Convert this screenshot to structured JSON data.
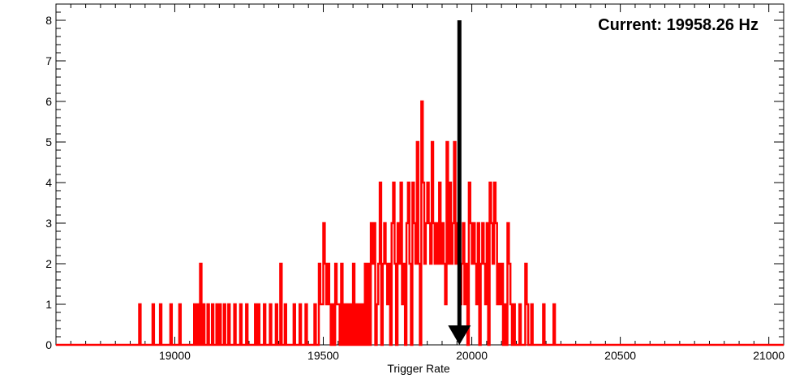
{
  "chart_data": {
    "type": "histogram-step",
    "xlabel": "Trigger Rate",
    "ylabel": "",
    "xlim": [
      18600,
      21050
    ],
    "ylim": [
      0,
      8.4
    ],
    "x_ticks": [
      19000,
      19500,
      20000,
      20500,
      21000
    ],
    "y_ticks": [
      0,
      1,
      2,
      3,
      4,
      5,
      6,
      7,
      8
    ],
    "bin_width": 5,
    "series": [
      {
        "color": "#ff0000",
        "bins": [
          [
            18880,
            1
          ],
          [
            18925,
            1
          ],
          [
            18950,
            1
          ],
          [
            18985,
            1
          ],
          [
            19015,
            1
          ],
          [
            19065,
            1
          ],
          [
            19075,
            1
          ],
          [
            19085,
            2
          ],
          [
            19095,
            1
          ],
          [
            19110,
            1
          ],
          [
            19125,
            1
          ],
          [
            19140,
            1
          ],
          [
            19150,
            1
          ],
          [
            19165,
            1
          ],
          [
            19180,
            1
          ],
          [
            19200,
            1
          ],
          [
            19220,
            1
          ],
          [
            19240,
            1
          ],
          [
            19270,
            1
          ],
          [
            19280,
            1
          ],
          [
            19300,
            1
          ],
          [
            19320,
            1
          ],
          [
            19340,
            1
          ],
          [
            19355,
            2
          ],
          [
            19370,
            1
          ],
          [
            19400,
            1
          ],
          [
            19420,
            1
          ],
          [
            19440,
            1
          ],
          [
            19470,
            1
          ],
          [
            19485,
            2
          ],
          [
            19490,
            1
          ],
          [
            19495,
            1
          ],
          [
            19500,
            3
          ],
          [
            19505,
            2
          ],
          [
            19510,
            1
          ],
          [
            19515,
            2
          ],
          [
            19520,
            1
          ],
          [
            19530,
            1
          ],
          [
            19540,
            2
          ],
          [
            19545,
            1
          ],
          [
            19550,
            1
          ],
          [
            19560,
            2
          ],
          [
            19570,
            1
          ],
          [
            19580,
            1
          ],
          [
            19590,
            1
          ],
          [
            19600,
            2
          ],
          [
            19610,
            1
          ],
          [
            19620,
            1
          ],
          [
            19630,
            1
          ],
          [
            19640,
            2
          ],
          [
            19650,
            2
          ],
          [
            19660,
            3
          ],
          [
            19665,
            2
          ],
          [
            19670,
            3
          ],
          [
            19680,
            1
          ],
          [
            19685,
            2
          ],
          [
            19690,
            4
          ],
          [
            19700,
            2
          ],
          [
            19705,
            3
          ],
          [
            19710,
            2
          ],
          [
            19715,
            1
          ],
          [
            19720,
            2
          ],
          [
            19730,
            3
          ],
          [
            19735,
            4
          ],
          [
            19740,
            2
          ],
          [
            19750,
            3
          ],
          [
            19755,
            2
          ],
          [
            19760,
            4
          ],
          [
            19765,
            1
          ],
          [
            19770,
            2
          ],
          [
            19780,
            3
          ],
          [
            19785,
            4
          ],
          [
            19790,
            2
          ],
          [
            19800,
            4
          ],
          [
            19805,
            3
          ],
          [
            19810,
            2
          ],
          [
            19815,
            5
          ],
          [
            19820,
            2
          ],
          [
            19830,
            6
          ],
          [
            19835,
            4
          ],
          [
            19840,
            2
          ],
          [
            19845,
            3
          ],
          [
            19850,
            4
          ],
          [
            19855,
            3
          ],
          [
            19860,
            2
          ],
          [
            19865,
            5
          ],
          [
            19870,
            3
          ],
          [
            19875,
            2
          ],
          [
            19880,
            3
          ],
          [
            19885,
            2
          ],
          [
            19890,
            4
          ],
          [
            19895,
            2
          ],
          [
            19900,
            3
          ],
          [
            19905,
            2
          ],
          [
            19910,
            1
          ],
          [
            19915,
            5
          ],
          [
            19920,
            2
          ],
          [
            19925,
            4
          ],
          [
            19930,
            2
          ],
          [
            19935,
            3
          ],
          [
            19940,
            5
          ],
          [
            19945,
            2
          ],
          [
            19950,
            3
          ],
          [
            19955,
            2
          ],
          [
            19960,
            1
          ],
          [
            19965,
            2
          ],
          [
            19970,
            3
          ],
          [
            19975,
            1
          ],
          [
            19980,
            2
          ],
          [
            19990,
            4
          ],
          [
            19995,
            3
          ],
          [
            20000,
            2
          ],
          [
            20005,
            3
          ],
          [
            20010,
            2
          ],
          [
            20015,
            1
          ],
          [
            20020,
            3
          ],
          [
            20030,
            2
          ],
          [
            20035,
            3
          ],
          [
            20040,
            2
          ],
          [
            20045,
            1
          ],
          [
            20050,
            3
          ],
          [
            20060,
            4
          ],
          [
            20065,
            3
          ],
          [
            20070,
            2
          ],
          [
            20075,
            4
          ],
          [
            20080,
            3
          ],
          [
            20085,
            1
          ],
          [
            20090,
            2
          ],
          [
            20095,
            1
          ],
          [
            20100,
            2
          ],
          [
            20110,
            1
          ],
          [
            20120,
            3
          ],
          [
            20125,
            2
          ],
          [
            20130,
            1
          ],
          [
            20140,
            1
          ],
          [
            20160,
            1
          ],
          [
            20180,
            2
          ],
          [
            20185,
            1
          ],
          [
            20200,
            1
          ],
          [
            20240,
            1
          ],
          [
            20275,
            1
          ]
        ]
      }
    ],
    "annotation": {
      "text": "Current: 19958.26 Hz",
      "arrow_x": 19958.26,
      "arrow_from_y": 8,
      "arrow_to_y": 0
    },
    "grid": false,
    "legend": "none"
  }
}
